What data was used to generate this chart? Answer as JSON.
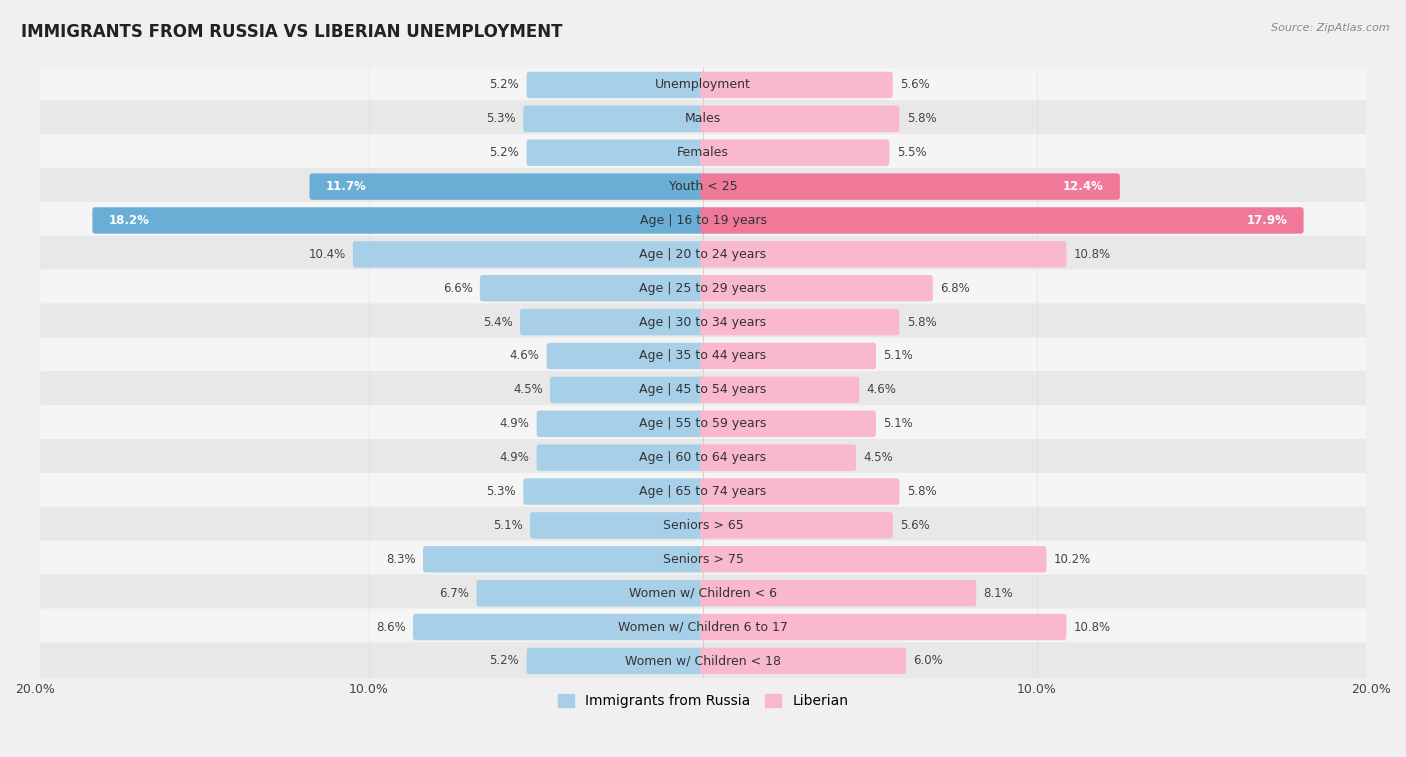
{
  "title": "IMMIGRANTS FROM RUSSIA VS LIBERIAN UNEMPLOYMENT",
  "source": "Source: ZipAtlas.com",
  "categories": [
    "Unemployment",
    "Males",
    "Females",
    "Youth < 25",
    "Age | 16 to 19 years",
    "Age | 20 to 24 years",
    "Age | 25 to 29 years",
    "Age | 30 to 34 years",
    "Age | 35 to 44 years",
    "Age | 45 to 54 years",
    "Age | 55 to 59 years",
    "Age | 60 to 64 years",
    "Age | 65 to 74 years",
    "Seniors > 65",
    "Seniors > 75",
    "Women w/ Children < 6",
    "Women w/ Children 6 to 17",
    "Women w/ Children < 18"
  ],
  "russia_values": [
    5.2,
    5.3,
    5.2,
    11.7,
    18.2,
    10.4,
    6.6,
    5.4,
    4.6,
    4.5,
    4.9,
    4.9,
    5.3,
    5.1,
    8.3,
    6.7,
    8.6,
    5.2
  ],
  "liberian_values": [
    5.6,
    5.8,
    5.5,
    12.4,
    17.9,
    10.8,
    6.8,
    5.8,
    5.1,
    4.6,
    5.1,
    4.5,
    5.8,
    5.6,
    10.2,
    8.1,
    10.8,
    6.0
  ],
  "russia_color_normal": "#a8cfe8",
  "russia_color_highlight": "#6aaed6",
  "liberian_color_normal": "#f9b8cb",
  "liberian_color_highlight": "#f07898",
  "row_bg_light": "#f5f5f5",
  "row_bg_dark": "#e8e8e8",
  "overall_bg": "#f0f0f0",
  "xlim": 20.0,
  "label_fontsize": 9,
  "value_fontsize": 8.5,
  "title_fontsize": 12,
  "source_fontsize": 8,
  "legend_fontsize": 10,
  "legend_russia": "Immigrants from Russia",
  "legend_liberian": "Liberian",
  "highlight_indices": [
    3,
    4
  ],
  "bar_height": 0.62
}
